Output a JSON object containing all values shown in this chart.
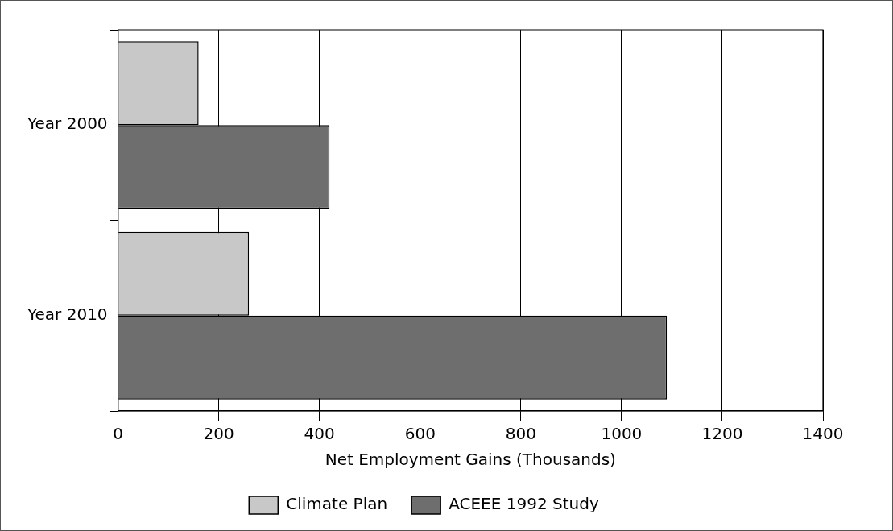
{
  "chart_data": {
    "type": "bar",
    "orientation": "horizontal",
    "xlabel": "Net Employment Gains (Thousands)",
    "categories": [
      "Year 2000",
      "Year 2010"
    ],
    "series": [
      {
        "name": "Climate Plan",
        "color": "#c8c8c8",
        "values": [
          160,
          260
        ]
      },
      {
        "name": "ACEEE 1992 Study",
        "color": "#6e6e6e",
        "values": [
          420,
          1090
        ]
      }
    ],
    "xlim": [
      0,
      1400
    ],
    "xticks": [
      0,
      200,
      400,
      600,
      800,
      1000,
      1200,
      1400
    ],
    "grid": "x",
    "legend": "bottom"
  }
}
